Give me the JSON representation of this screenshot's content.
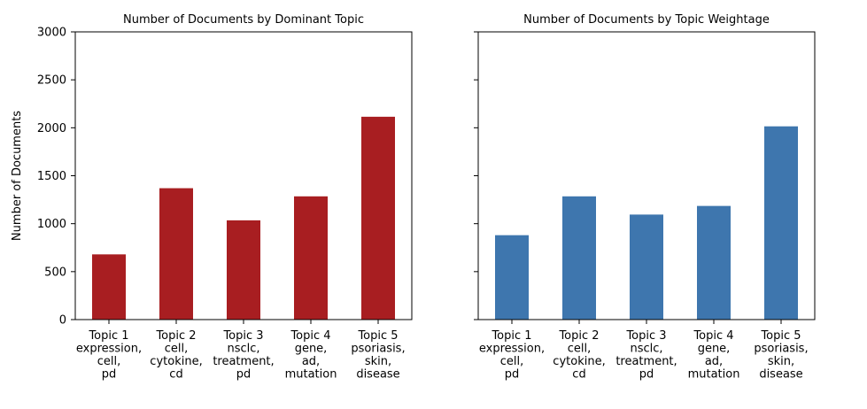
{
  "chart_data": [
    {
      "type": "bar",
      "title": "Number of Documents by Dominant Topic",
      "ylabel": "Number of Documents",
      "xlabel": "",
      "ylim": [
        0,
        3000
      ],
      "yticks": [
        0,
        500,
        1000,
        1500,
        2000,
        2500,
        3000
      ],
      "categories": [
        "Topic 1\nexpression,\ncell,\npd",
        "Topic 2\ncell,\ncytokine,\ncd",
        "Topic 3\nnsclc,\ntreatment,\npd",
        "Topic 4\ngene,\nad,\nmutation",
        "Topic 5\npsoriasis,\nskin,\ndisease"
      ],
      "values": [
        680,
        1370,
        1035,
        1285,
        2115
      ],
      "color": "#a81e21",
      "grid": false,
      "show_ytick_labels": true
    },
    {
      "type": "bar",
      "title": "Number of Documents by Topic Weightage",
      "ylabel": "",
      "xlabel": "",
      "ylim": [
        0,
        3000
      ],
      "yticks": [
        0,
        500,
        1000,
        1500,
        2000,
        2500,
        3000
      ],
      "categories": [
        "Topic 1\nexpression,\ncell,\npd",
        "Topic 2\ncell,\ncytokine,\ncd",
        "Topic 3\nnsclc,\ntreatment,\npd",
        "Topic 4\ngene,\nad,\nmutation",
        "Topic 5\npsoriasis,\nskin,\ndisease"
      ],
      "values": [
        880,
        1285,
        1095,
        1185,
        2015
      ],
      "color": "#3e76ae",
      "grid": false,
      "show_ytick_labels": false
    }
  ]
}
